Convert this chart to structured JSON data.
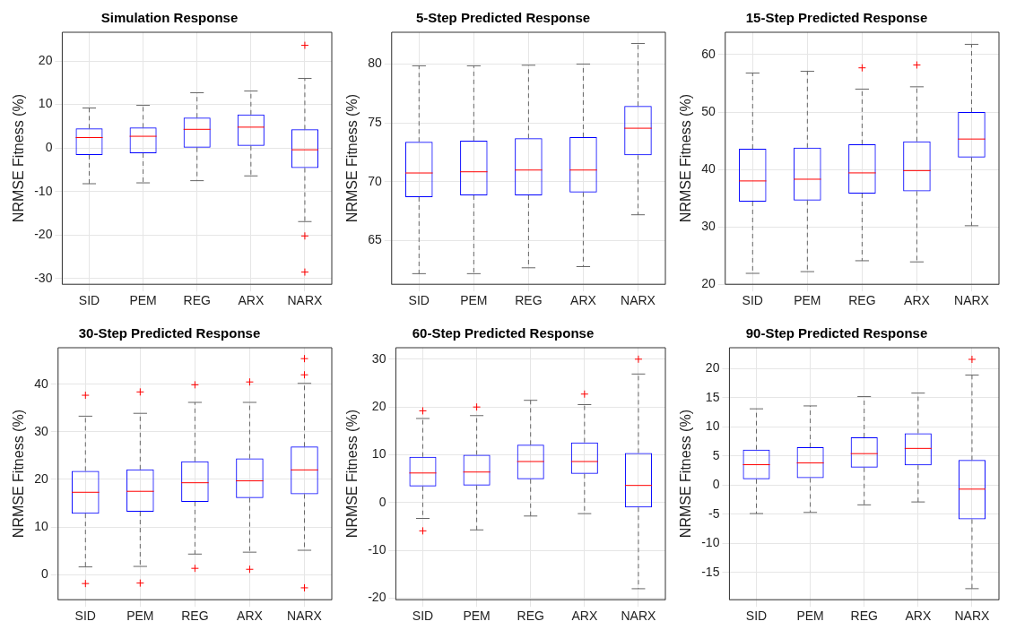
{
  "chart_data": [
    {
      "type": "box",
      "title": "Simulation Response",
      "ylabel": "NRMSE Fitness (%)",
      "categories": [
        "SID",
        "PEM",
        "REG",
        "ARX",
        "NARX"
      ],
      "color": "#0000ff",
      "grid": true,
      "ylim": [
        -31.3,
        26.6
      ],
      "yticks": [
        -30,
        -20,
        -10,
        0,
        10,
        20
      ],
      "boxes": [
        {
          "low": -8.2,
          "q1": -1.6,
          "median": 2.4,
          "q3": 4.5,
          "high": 9.2
        },
        {
          "low": -8,
          "q1": -1.2,
          "median": 2.7,
          "q3": 4.7,
          "high": 9.8
        },
        {
          "low": -7.5,
          "q1": 0.1,
          "median": 4.3,
          "q3": 7,
          "high": 12.7
        },
        {
          "low": -6.4,
          "q1": 0.5,
          "median": 4.8,
          "q3": 7.7,
          "high": 13.1
        },
        {
          "low": -16.9,
          "q1": -4.6,
          "median": -0.4,
          "q3": 4.3,
          "high": 16,
          "outliers": [
            23.6,
            -20.2,
            -28.5
          ]
        }
      ]
    },
    {
      "type": "box",
      "title": "5-Step Predicted Response",
      "ylabel": "NRMSE Fitness (%)",
      "categories": [
        "SID",
        "PEM",
        "REG",
        "ARX",
        "NARX"
      ],
      "color": "#0000ff",
      "grid": true,
      "ylim": [
        61.3,
        82.7
      ],
      "yticks": [
        65,
        70,
        75,
        80
      ],
      "boxes": [
        {
          "low": 62.2,
          "q1": 68.7,
          "median": 70.75,
          "q3": 73.4,
          "high": 79.85
        },
        {
          "low": 62.2,
          "q1": 68.85,
          "median": 70.85,
          "q3": 73.5,
          "high": 79.85
        },
        {
          "low": 62.7,
          "q1": 68.85,
          "median": 71,
          "q3": 73.7,
          "high": 79.9
        },
        {
          "low": 62.8,
          "q1": 69.1,
          "median": 71,
          "q3": 73.8,
          "high": 80
        },
        {
          "low": 67.2,
          "q1": 72.25,
          "median": 74.55,
          "q3": 76.45,
          "high": 81.75
        }
      ]
    },
    {
      "type": "box",
      "title": "15-Step Predicted Response",
      "ylabel": "NRMSE Fitness (%)",
      "categories": [
        "SID",
        "PEM",
        "REG",
        "ARX",
        "NARX"
      ],
      "color": "#0000ff",
      "grid": true,
      "ylim": [
        20,
        63.9
      ],
      "yticks": [
        20,
        30,
        40,
        50,
        60
      ],
      "boxes": [
        {
          "low": 21.9,
          "q1": 34.4,
          "median": 38,
          "q3": 43.6,
          "high": 56.8
        },
        {
          "low": 22.2,
          "q1": 34.6,
          "median": 38.3,
          "q3": 43.8,
          "high": 57.1
        },
        {
          "low": 24.1,
          "q1": 35.8,
          "median": 39.4,
          "q3": 44.4,
          "high": 54,
          "outliers": [
            57.7
          ]
        },
        {
          "low": 23.9,
          "q1": 36.2,
          "median": 39.8,
          "q3": 44.9,
          "high": 54.4,
          "outliers": [
            58.2
          ]
        },
        {
          "low": 30.2,
          "q1": 42.1,
          "median": 45.3,
          "q3": 50,
          "high": 61.8
        }
      ]
    },
    {
      "type": "box",
      "title": "30-Step Predicted Response",
      "ylabel": "NRMSE Fitness (%)",
      "categories": [
        "SID",
        "PEM",
        "REG",
        "ARX",
        "NARX"
      ],
      "color": "#0000ff",
      "grid": true,
      "ylim": [
        -5.3,
        47.7
      ],
      "yticks": [
        0,
        10,
        20,
        30,
        40
      ],
      "boxes": [
        {
          "low": 1.6,
          "q1": 12.8,
          "median": 17.3,
          "q3": 21.8,
          "high": 33.3,
          "outliers": [
            37.7,
            -1.9
          ]
        },
        {
          "low": 1.7,
          "q1": 13.2,
          "median": 17.5,
          "q3": 22.1,
          "high": 33.9,
          "outliers": [
            38.4,
            -1.8
          ]
        },
        {
          "low": 4.3,
          "q1": 15.3,
          "median": 19.3,
          "q3": 23.8,
          "high": 36.2,
          "outliers": [
            39.9,
            1.3
          ]
        },
        {
          "low": 4.7,
          "q1": 16.1,
          "median": 19.7,
          "q3": 24.4,
          "high": 36.2,
          "outliers": [
            40.5,
            1.1
          ]
        },
        {
          "low": 5.1,
          "q1": 16.9,
          "median": 22,
          "q3": 26.9,
          "high": 40.2,
          "outliers": [
            45.4,
            42,
            -2.8
          ]
        }
      ]
    },
    {
      "type": "box",
      "title": "60-Step Predicted Response",
      "ylabel": "NRMSE Fitness (%)",
      "categories": [
        "SID",
        "PEM",
        "REG",
        "ARX",
        "NARX"
      ],
      "color": "#0000ff",
      "grid": true,
      "ylim": [
        -20.3,
        32.4
      ],
      "yticks": [
        -20,
        -10,
        0,
        10,
        20,
        30
      ],
      "boxes": [
        {
          "low": -3.3,
          "q1": 3.4,
          "median": 6.2,
          "q3": 9.6,
          "high": 17.6,
          "outliers": [
            19.2,
            -5.9
          ]
        },
        {
          "low": -5.7,
          "q1": 3.6,
          "median": 6.4,
          "q3": 10,
          "high": 18.2,
          "outliers": [
            20
          ]
        },
        {
          "low": -2.8,
          "q1": 4.9,
          "median": 8.6,
          "q3": 12.1,
          "high": 21.4
        },
        {
          "low": -2.3,
          "q1": 6,
          "median": 8.6,
          "q3": 12.6,
          "high": 20.5,
          "outliers": [
            22.7
          ]
        },
        {
          "low": -18,
          "q1": -1,
          "median": 3.6,
          "q3": 10.4,
          "high": 26.9,
          "outliers": [
            30
          ]
        }
      ]
    },
    {
      "type": "box",
      "title": "90-Step Predicted Response",
      "ylabel": "NRMSE Fitness (%)",
      "categories": [
        "SID",
        "PEM",
        "REG",
        "ARX",
        "NARX"
      ],
      "color": "#0000ff",
      "grid": true,
      "ylim": [
        -19.7,
        23.6
      ],
      "yticks": [
        -15,
        -10,
        -5,
        0,
        5,
        10,
        15,
        20
      ],
      "boxes": [
        {
          "low": -4.9,
          "q1": 1,
          "median": 3.5,
          "q3": 6.1,
          "high": 13.1
        },
        {
          "low": -4.7,
          "q1": 1.2,
          "median": 3.8,
          "q3": 6.5,
          "high": 13.6
        },
        {
          "low": -3.4,
          "q1": 3,
          "median": 5.4,
          "q3": 8.2,
          "high": 15.2
        },
        {
          "low": -2.9,
          "q1": 3.4,
          "median": 6.3,
          "q3": 8.9,
          "high": 15.8
        },
        {
          "low": -17.8,
          "q1": -5.9,
          "median": -0.7,
          "q3": 4.3,
          "high": 18.9,
          "outliers": [
            21.6
          ]
        }
      ]
    }
  ]
}
